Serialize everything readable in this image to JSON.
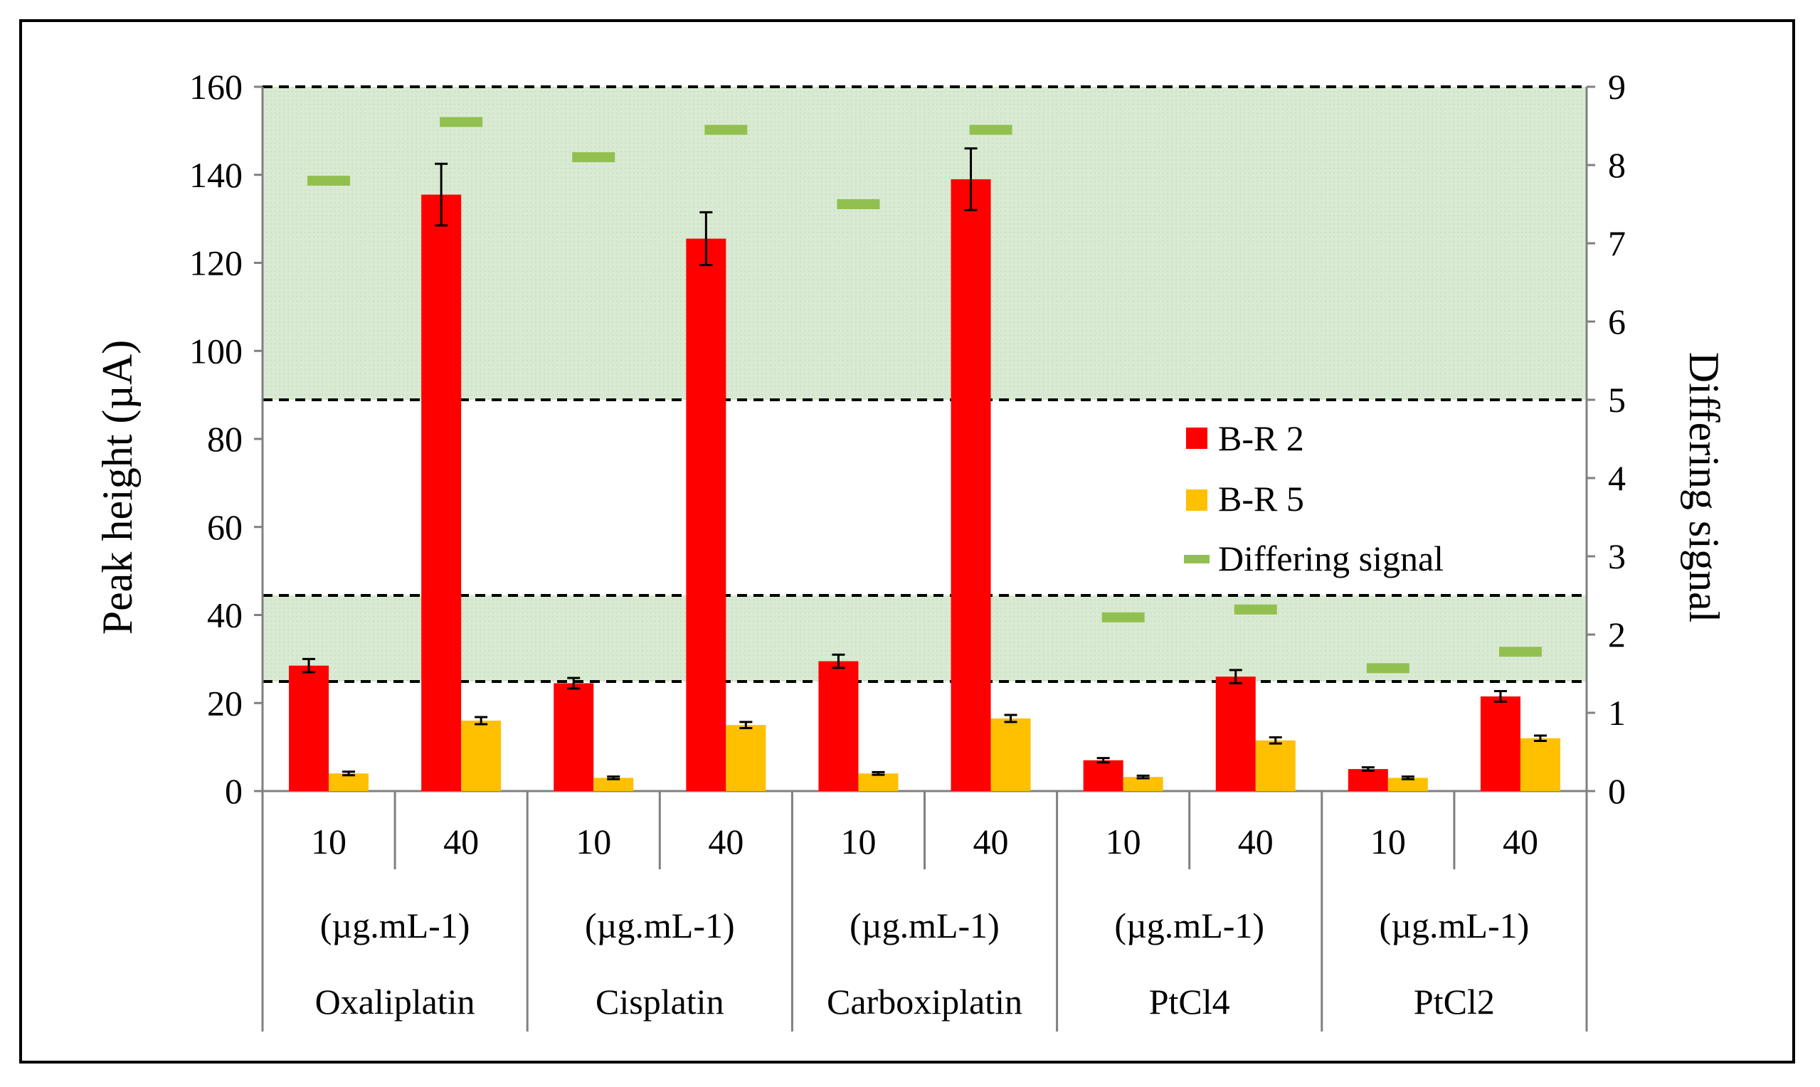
{
  "chart_data": {
    "type": "bar",
    "title": "",
    "ylabel": "Peak height  (µA)",
    "y2label": "Differing signal",
    "ylim": [
      0,
      160
    ],
    "y2lim": [
      0,
      9
    ],
    "yticks": [
      "0",
      "20",
      "40",
      "60",
      "80",
      "100",
      "120",
      "140",
      "160"
    ],
    "y2ticks": [
      "0",
      "1",
      "2",
      "3",
      "4",
      "5",
      "6",
      "7",
      "8",
      "9"
    ],
    "groups": [
      {
        "name": "Oxaliplatin",
        "unit": "(µg.mL-1)",
        "concentrations": [
          "10",
          "40"
        ]
      },
      {
        "name": "Cisplatin",
        "unit": "(µg.mL-1)",
        "concentrations": [
          "10",
          "40"
        ]
      },
      {
        "name": "Carboxiplatin",
        "unit": "(µg.mL-1)",
        "concentrations": [
          "10",
          "40"
        ]
      },
      {
        "name": "PtCl4",
        "unit": "(µg.mL-1)",
        "concentrations": [
          "10",
          "40"
        ]
      },
      {
        "name": "PtCl2",
        "unit": "(µg.mL-1)",
        "concentrations": [
          "10",
          "40"
        ]
      }
    ],
    "series": [
      {
        "name": "B-R 2",
        "color": "#ff0000",
        "axis": "left",
        "values": [
          28.5,
          135.5,
          24.5,
          125.5,
          29.5,
          139,
          7,
          26,
          5,
          21.5
        ],
        "errors": [
          1.5,
          7,
          1.2,
          6,
          1.5,
          7,
          0.5,
          1.5,
          0.4,
          1.2
        ]
      },
      {
        "name": "B-R 5",
        "color": "#ffc000",
        "axis": "left",
        "values": [
          4,
          16,
          3,
          15,
          4,
          16.5,
          3.2,
          11.5,
          3,
          12
        ],
        "errors": [
          0.4,
          0.8,
          0.3,
          0.7,
          0.3,
          0.8,
          0.3,
          0.7,
          0.3,
          0.6
        ]
      },
      {
        "name": "Differing signal",
        "color": "#92c050",
        "axis": "right",
        "marker": "dash",
        "values": [
          7.8,
          8.55,
          8.1,
          8.45,
          7.5,
          8.45,
          2.22,
          2.32,
          1.57,
          1.78
        ]
      }
    ],
    "bands": [
      {
        "y2_from": 5.0,
        "y2_to": 9.0,
        "color": "#d9ead3"
      },
      {
        "y2_from": 1.4,
        "y2_to": 2.5,
        "color": "#d9ead3"
      }
    ],
    "legend_position": "middle-right"
  }
}
